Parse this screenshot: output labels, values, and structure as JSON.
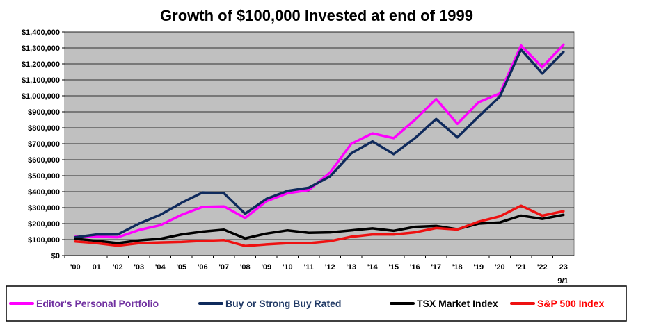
{
  "chart_data": {
    "type": "line",
    "title": "Growth of $100,000  Invested at end of 1999",
    "xlabel": "",
    "ylabel": "",
    "ylim": [
      0,
      1400000
    ],
    "yticks": [
      "$1,400,000",
      "$1,300,000",
      "$1,200,000",
      "$1,100,000",
      "$1,000,000",
      "$900,000",
      "$800,000",
      "$700,000",
      "$600,000",
      "$500,000",
      "$400,000",
      "$300,000",
      "$200,000",
      "$100,000",
      "$0"
    ],
    "categories": [
      "'00",
      "01",
      "'02",
      "'03",
      "'04",
      "'05",
      "'06",
      "'07",
      "'08",
      "'09",
      "'10",
      "'11",
      "'12",
      "'13",
      "'14",
      "'15",
      "'16",
      "'17",
      "'18",
      "'19",
      "'20",
      "'21",
      "'22",
      "23"
    ],
    "x_sublabel": "9/1",
    "grid": true,
    "legend_position": "bottom",
    "series": [
      {
        "name": "Editor's Personal Portfolio",
        "color": "#ff00ff",
        "values": [
          118000,
          118000,
          115000,
          160000,
          190000,
          255000,
          305000,
          308000,
          235000,
          340000,
          390000,
          410000,
          520000,
          700000,
          765000,
          735000,
          850000,
          980000,
          825000,
          960000,
          1015000,
          1315000,
          1180000,
          1320000
        ]
      },
      {
        "name": "Buy or Strong Buy Rated",
        "color": "#0f2a5c",
        "values": [
          115000,
          132000,
          132000,
          200000,
          255000,
          330000,
          395000,
          390000,
          262000,
          355000,
          405000,
          425000,
          495000,
          640000,
          715000,
          635000,
          735000,
          855000,
          740000,
          870000,
          995000,
          1290000,
          1140000,
          1275000
        ]
      },
      {
        "name": "TSX Market Index",
        "color": "#000000",
        "values": [
          105000,
          92000,
          78000,
          95000,
          105000,
          132000,
          150000,
          162000,
          108000,
          138000,
          158000,
          142000,
          145000,
          158000,
          170000,
          155000,
          180000,
          185000,
          165000,
          200000,
          208000,
          250000,
          230000,
          255000
        ]
      },
      {
        "name": "S&P 500 Index",
        "color": "#ee1111",
        "values": [
          88000,
          78000,
          62000,
          78000,
          82000,
          85000,
          92000,
          97000,
          60000,
          70000,
          78000,
          78000,
          90000,
          118000,
          132000,
          132000,
          145000,
          172000,
          163000,
          212000,
          245000,
          312000,
          250000,
          278000
        ]
      }
    ]
  },
  "legend": {
    "items": [
      {
        "label": "Editor's Personal Portfolio",
        "color": "#ff00ff",
        "text_color": "#7030a0"
      },
      {
        "label": "Buy or Strong Buy Rated",
        "color": "#0f2a5c",
        "text_color": "#1f3864"
      },
      {
        "label": "TSX Market Index",
        "color": "#000000",
        "text_color": "#000000"
      },
      {
        "label": "S&P 500 Index",
        "color": "#ee1111",
        "text_color": "#ff0000"
      }
    ]
  },
  "colors": {
    "plot_background": "#c0c0c0",
    "gridline": "#000000"
  }
}
